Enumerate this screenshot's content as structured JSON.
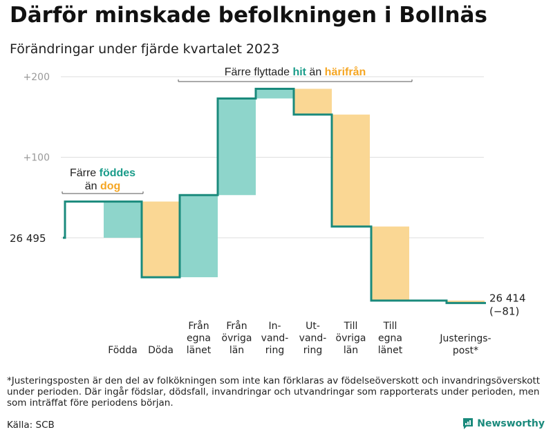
{
  "title": "Därför minskade befolkningen i Bollnäs",
  "subtitle": "Förändringar under fjärde kvartalet 2023",
  "footnote": "*Justeringsposten är den del av folkökningen som inte kan förklaras av födelseöverskott och invandringsöverskott under perioden. Där ingår födslar, dödsfall, invandringar och utvandringar som rapporterats under perioden, men som inträffat före periodens början.",
  "source": "Källa: SCB",
  "logo_text": "Newsworthy",
  "colors": {
    "increase": "#8ed5cb",
    "decrease": "#fad794",
    "line": "#1a8a7c",
    "accent_teal": "#1a9c8a",
    "accent_orange": "#f5a623",
    "grid": "#dddddd"
  },
  "chart_data": {
    "type": "waterfall",
    "start_value": 26495,
    "start_label": "26  495",
    "end_value": 26414,
    "end_label": "26 414",
    "end_change_label": "(−81)",
    "y_ticks": [
      {
        "value": 200,
        "label": "+200"
      },
      {
        "value": 100,
        "label": "+100"
      }
    ],
    "steps": [
      {
        "label": [
          "Födda"
        ],
        "change": 45,
        "kind": "increase"
      },
      {
        "label": [
          "Döda"
        ],
        "change": -94,
        "kind": "decrease"
      },
      {
        "label": [
          "Från",
          "egna",
          "länet"
        ],
        "change": 102,
        "kind": "increase"
      },
      {
        "label": [
          "Från",
          "övriga",
          "län"
        ],
        "change": 120,
        "kind": "increase"
      },
      {
        "label": [
          "In-",
          "vand-",
          "ring"
        ],
        "change": 12,
        "kind": "increase"
      },
      {
        "label": [
          "Ut-",
          "vand-",
          "ring"
        ],
        "change": -32,
        "kind": "decrease"
      },
      {
        "label": [
          "Till",
          "övriga",
          "län"
        ],
        "change": -139,
        "kind": "decrease"
      },
      {
        "label": [
          "Till",
          "egna",
          "länet"
        ],
        "change": -92,
        "kind": "decrease"
      },
      {
        "label": [
          "Justerings-",
          "post*"
        ],
        "change": -3,
        "kind": "decrease"
      }
    ],
    "annotations": [
      {
        "parts": [
          [
            {
              "text": "Färre ",
              "color": "#222",
              "bold": false
            },
            {
              "text": "föddes",
              "color": "#1a9c8a",
              "bold": true
            }
          ],
          [
            {
              "text": "än ",
              "color": "#222",
              "bold": false
            },
            {
              "text": "dog",
              "color": "#f5a623",
              "bold": true
            }
          ]
        ],
        "span": [
          0,
          1
        ]
      },
      {
        "parts": [
          [
            {
              "text": "Färre flyttade ",
              "color": "#222",
              "bold": false
            },
            {
              "text": "hit",
              "color": "#1a9c8a",
              "bold": true
            },
            {
              "text": "  än ",
              "color": "#222",
              "bold": false
            },
            {
              "text": "härifrån",
              "color": "#f5a623",
              "bold": true
            }
          ]
        ],
        "span": [
          2,
          7
        ]
      }
    ]
  }
}
